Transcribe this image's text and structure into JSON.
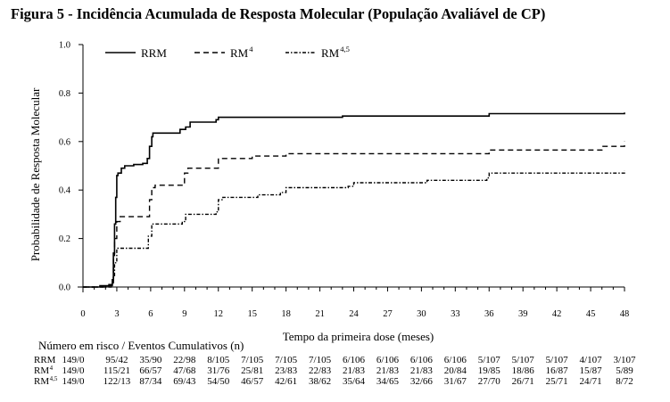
{
  "figure_title": "Figura 5 - Incidência Acumulada de Resposta Molecular (População Avaliável de CP)",
  "risk_table": {
    "heading": "Número em risco / Eventos Cumulativos (n)",
    "rows": [
      {
        "label": "RRM",
        "label_sup": "",
        "values": [
          "149/0",
          "95/42",
          "35/90",
          "22/98",
          "8/105",
          "7/105",
          "7/105",
          "7/105",
          "6/106",
          "6/106",
          "6/106",
          "6/106",
          "5/107",
          "5/107",
          "5/107",
          "4/107",
          "3/107"
        ]
      },
      {
        "label": "RM",
        "label_sup": "4",
        "values": [
          "149/0",
          "115/21",
          "66/57",
          "47/68",
          "31/76",
          "25/81",
          "23/83",
          "22/83",
          "21/83",
          "21/83",
          "21/83",
          "20/84",
          "19/85",
          "18/86",
          "16/87",
          "15/87",
          "5/89"
        ]
      },
      {
        "label": "RM",
        "label_sup": "4,5",
        "values": [
          "149/0",
          "122/13",
          "87/34",
          "69/43",
          "54/50",
          "46/57",
          "42/61",
          "38/62",
          "35/64",
          "34/65",
          "32/66",
          "31/67",
          "27/70",
          "26/71",
          "25/71",
          "24/71",
          "8/72"
        ]
      }
    ]
  },
  "chart_data": {
    "type": "line",
    "title": "",
    "xlabel": "Tempo da primeira dose (meses)",
    "ylabel": "Probabilidade de Resposta Molecular",
    "xlim": [
      0,
      48
    ],
    "ylim": [
      0,
      1.0
    ],
    "xticks": [
      0,
      3,
      6,
      9,
      12,
      15,
      18,
      21,
      24,
      27,
      30,
      33,
      36,
      39,
      42,
      45,
      48
    ],
    "yticks": [
      "0.0",
      "0.2",
      "0.4",
      "0.6",
      "0.8",
      "1.0"
    ],
    "grid": false,
    "legend_position": "top-left",
    "series": [
      {
        "name": "RRM",
        "name_sup": "",
        "style": "solid",
        "color": "#000000",
        "points": [
          [
            0,
            0
          ],
          [
            1.3,
            0
          ],
          [
            1.5,
            0.005
          ],
          [
            2.3,
            0.01
          ],
          [
            2.6,
            0.03
          ],
          [
            2.7,
            0.14
          ],
          [
            2.8,
            0.26
          ],
          [
            2.9,
            0.37
          ],
          [
            3.0,
            0.46
          ],
          [
            3.1,
            0.47
          ],
          [
            3.4,
            0.49
          ],
          [
            3.7,
            0.5
          ],
          [
            4.5,
            0.505
          ],
          [
            5.3,
            0.51
          ],
          [
            5.7,
            0.53
          ],
          [
            5.9,
            0.58
          ],
          [
            6.1,
            0.62
          ],
          [
            6.2,
            0.635
          ],
          [
            8.5,
            0.635
          ],
          [
            8.6,
            0.65
          ],
          [
            9.1,
            0.66
          ],
          [
            9.5,
            0.68
          ],
          [
            11.8,
            0.69
          ],
          [
            12.0,
            0.7
          ],
          [
            23.0,
            0.705
          ],
          [
            36.0,
            0.715
          ],
          [
            48.0,
            0.72
          ]
        ]
      },
      {
        "name": "RM",
        "name_sup": "4",
        "style": "dashed",
        "color": "#000000",
        "points": [
          [
            0,
            0
          ],
          [
            2.0,
            0
          ],
          [
            2.3,
            0.005
          ],
          [
            2.6,
            0.02
          ],
          [
            2.7,
            0.12
          ],
          [
            2.8,
            0.2
          ],
          [
            3.0,
            0.27
          ],
          [
            3.3,
            0.29
          ],
          [
            5.8,
            0.29
          ],
          [
            5.9,
            0.36
          ],
          [
            6.1,
            0.41
          ],
          [
            6.4,
            0.42
          ],
          [
            8.8,
            0.42
          ],
          [
            9.0,
            0.47
          ],
          [
            9.3,
            0.49
          ],
          [
            11.8,
            0.49
          ],
          [
            12.0,
            0.53
          ],
          [
            15.0,
            0.54
          ],
          [
            18.0,
            0.55
          ],
          [
            36.0,
            0.565
          ],
          [
            46.0,
            0.58
          ],
          [
            47.5,
            0.58
          ],
          [
            48.0,
            0.6
          ]
        ]
      },
      {
        "name": "RM",
        "name_sup": "4,5",
        "style": "dotdash",
        "color": "#000000",
        "points": [
          [
            0,
            0
          ],
          [
            2.3,
            0
          ],
          [
            2.5,
            0.01
          ],
          [
            2.7,
            0.04
          ],
          [
            2.8,
            0.1
          ],
          [
            3.0,
            0.16
          ],
          [
            5.7,
            0.16
          ],
          [
            5.8,
            0.21
          ],
          [
            6.1,
            0.26
          ],
          [
            8.8,
            0.27
          ],
          [
            9.1,
            0.3
          ],
          [
            11.8,
            0.31
          ],
          [
            12.0,
            0.36
          ],
          [
            12.4,
            0.37
          ],
          [
            15.5,
            0.38
          ],
          [
            17.5,
            0.39
          ],
          [
            18.0,
            0.41
          ],
          [
            23.5,
            0.415
          ],
          [
            24.0,
            0.43
          ],
          [
            30.5,
            0.44
          ],
          [
            35.8,
            0.45
          ],
          [
            36.0,
            0.47
          ],
          [
            48.0,
            0.48
          ]
        ]
      }
    ]
  }
}
